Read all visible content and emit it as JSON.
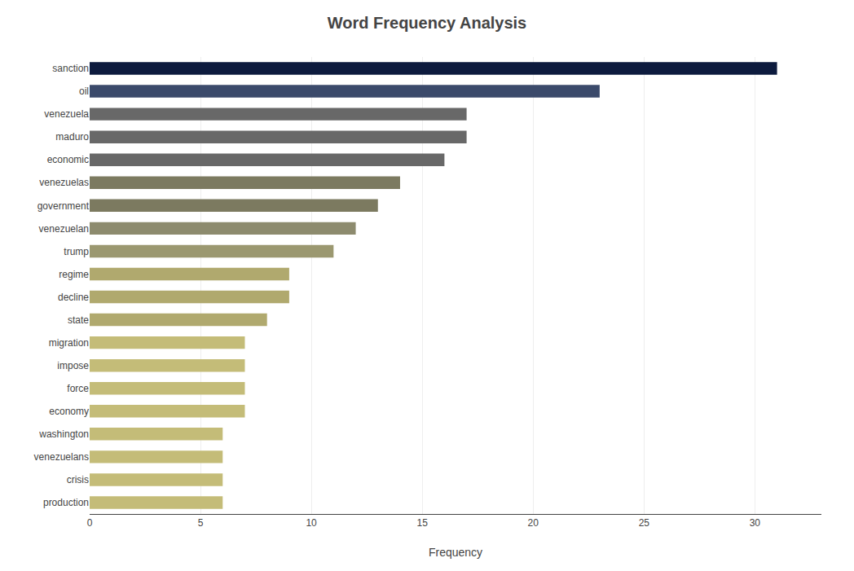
{
  "chart_data": {
    "type": "bar",
    "orientation": "horizontal",
    "title": "Word Frequency Analysis",
    "xlabel": "Frequency",
    "categories": [
      "sanction",
      "oil",
      "venezuela",
      "maduro",
      "economic",
      "venezuelas",
      "government",
      "venezuelan",
      "trump",
      "regime",
      "decline",
      "state",
      "migration",
      "impose",
      "force",
      "economy",
      "washington",
      "venezuelans",
      "crisis",
      "production"
    ],
    "values": [
      31,
      23,
      17,
      17,
      16,
      14,
      13,
      12,
      11,
      9,
      9,
      8,
      7,
      7,
      7,
      7,
      6,
      6,
      6,
      6
    ],
    "colors": [
      "#0d1b3e",
      "#3b4a6b",
      "#686868",
      "#686868",
      "#686868",
      "#7c7a60",
      "#7c7a60",
      "#8d8b6e",
      "#9b9870",
      "#b0a96e",
      "#b0a96e",
      "#b0a96e",
      "#c4bc78",
      "#c4bc78",
      "#c4bc78",
      "#c4bc78",
      "#c4bc78",
      "#c4bc78",
      "#c4bc78",
      "#c4bc78"
    ],
    "xlim": [
      0,
      33
    ],
    "xticks": [
      0,
      5,
      10,
      15,
      20,
      25,
      30
    ],
    "grid": true
  }
}
